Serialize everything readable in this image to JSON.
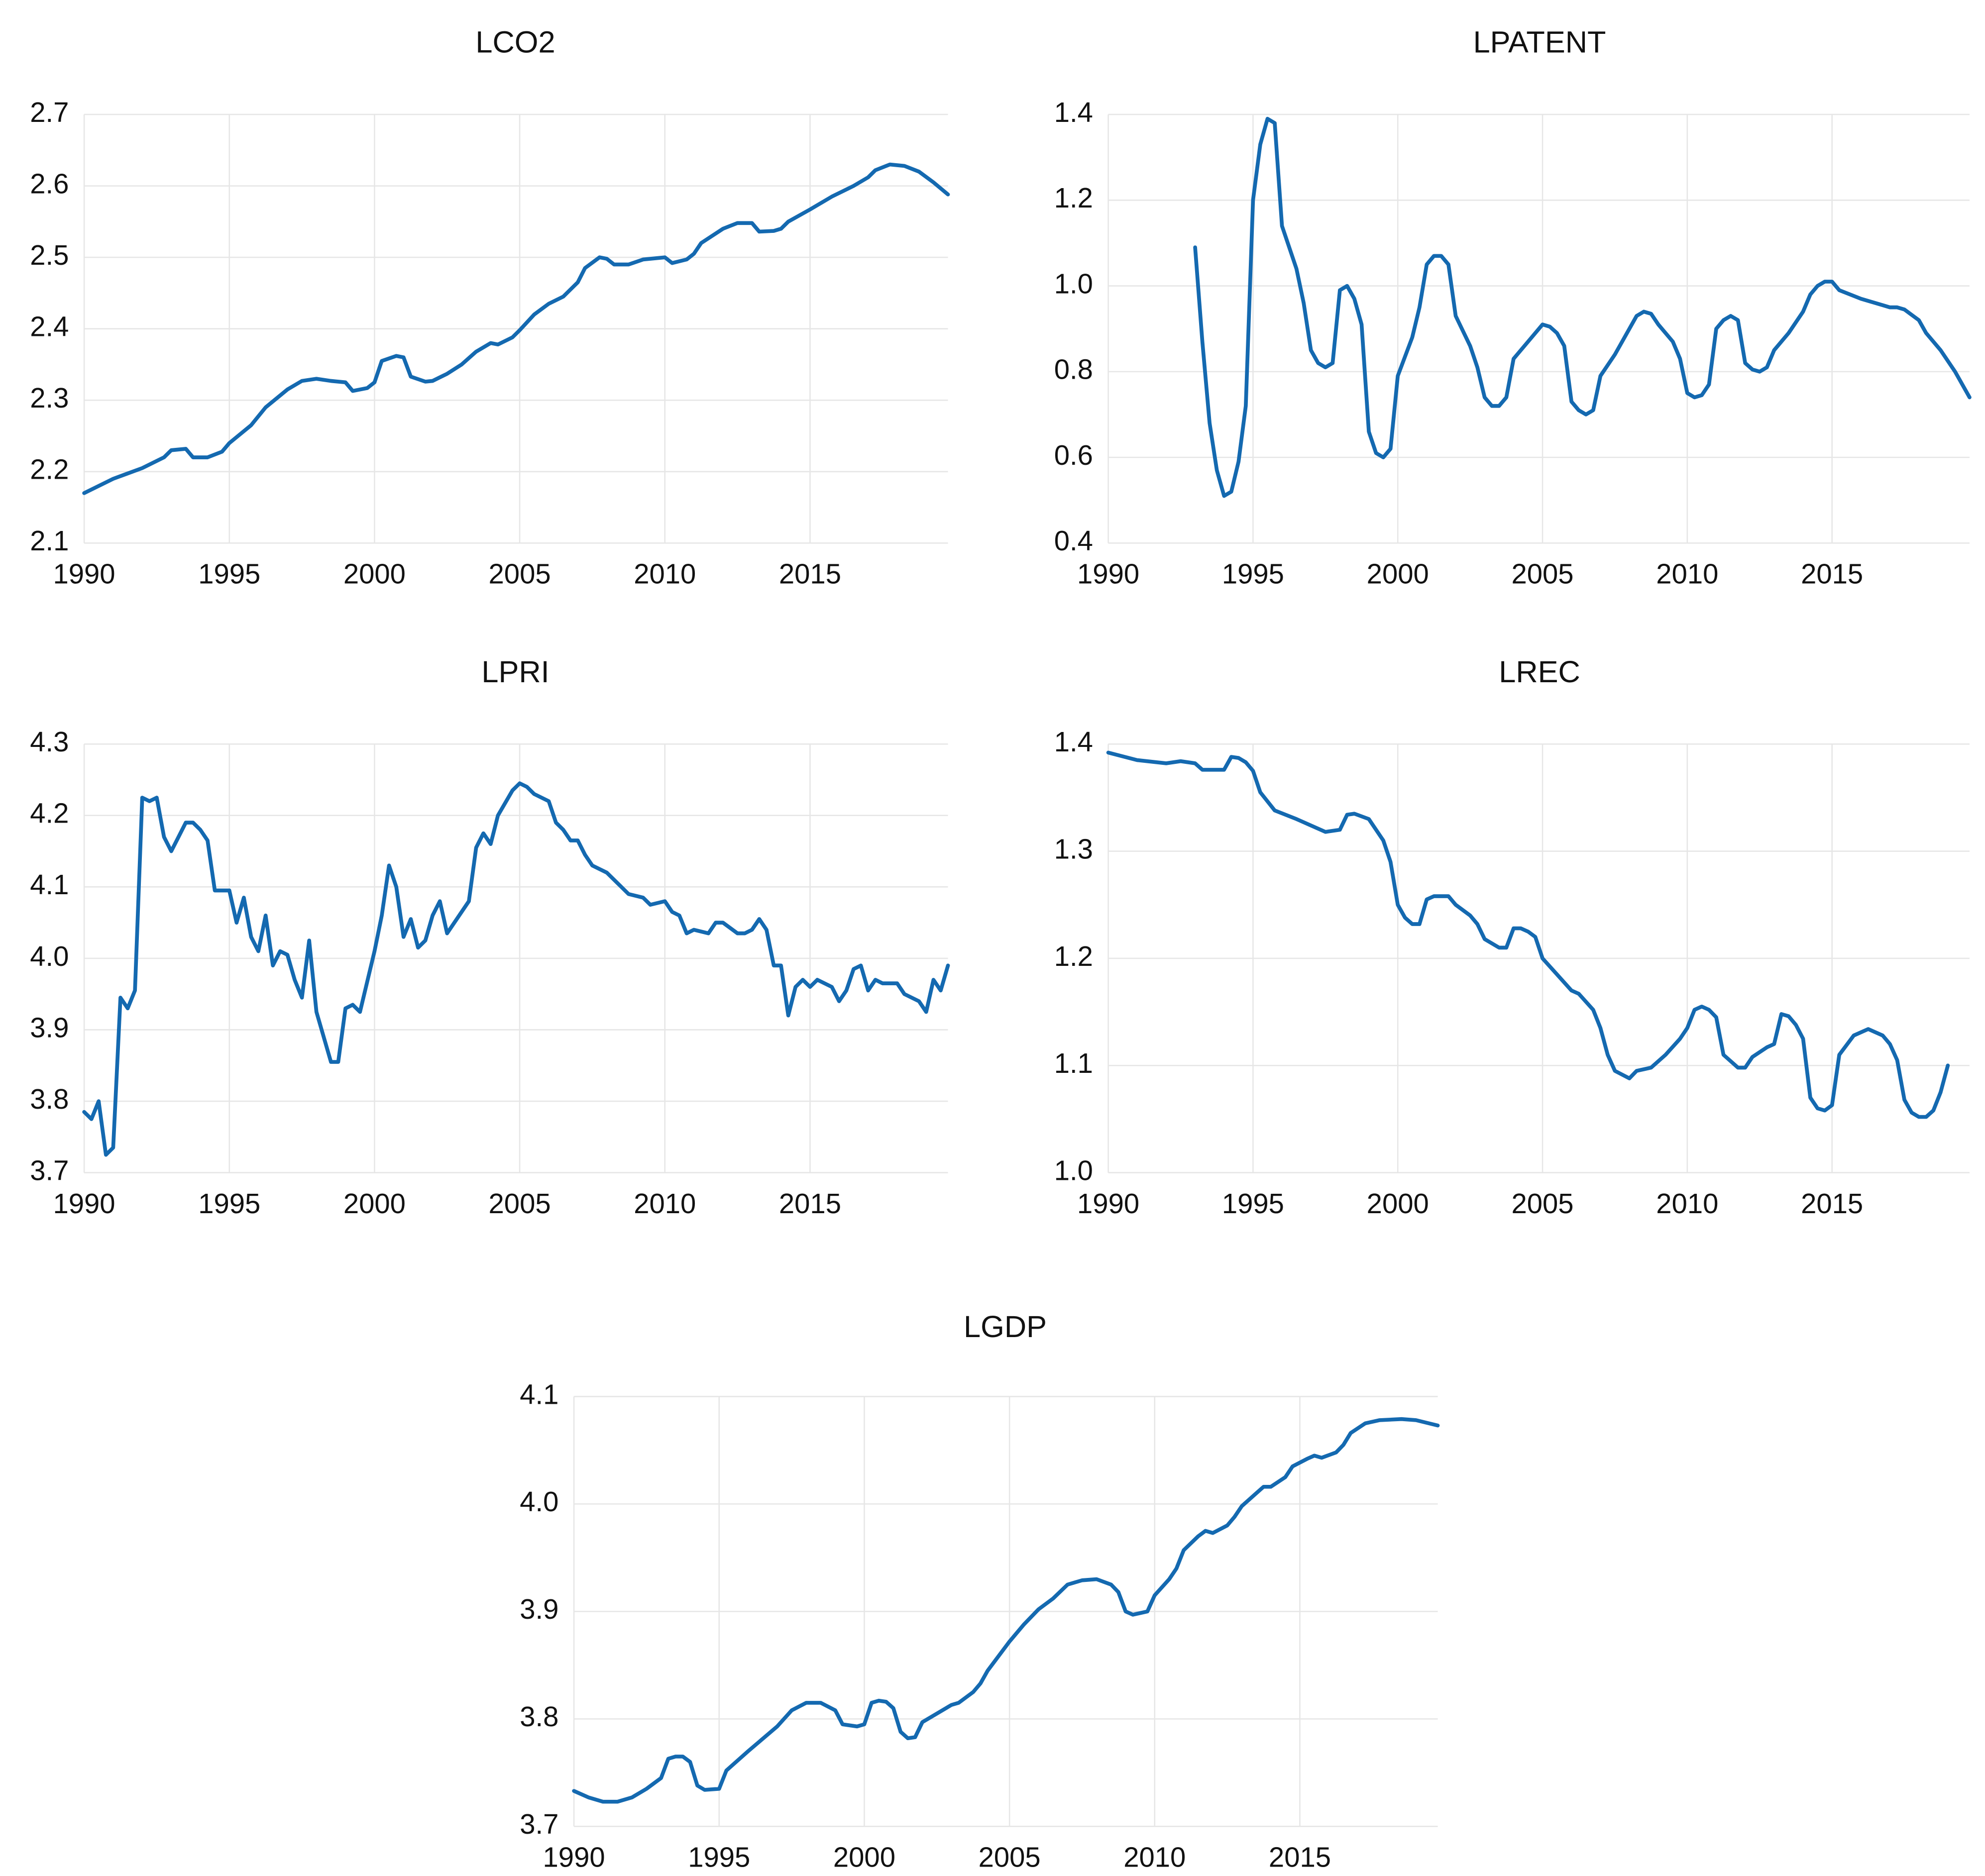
{
  "chart_data": [
    {
      "type": "line",
      "title": "LCO2",
      "color": "#1469b0",
      "grid": true,
      "xlim": [
        1990,
        2019.75
      ],
      "xticks": [
        1990,
        1995,
        2000,
        2005,
        2010,
        2015
      ],
      "ylim": [
        2.1,
        2.7
      ],
      "yticks": [
        2.1,
        2.2,
        2.3,
        2.4,
        2.5,
        2.6,
        2.7
      ],
      "x": [
        1990,
        1991,
        1992,
        1992.75,
        1993,
        1993.5,
        1993.75,
        1994.25,
        1994.75,
        1995,
        1995.75,
        1996.25,
        1997,
        1997.5,
        1998,
        1998.5,
        1999,
        1999.25,
        1999.75,
        2000,
        2000.25,
        2000.75,
        2001,
        2001.25,
        2001.75,
        2002,
        2002.5,
        2003,
        2003.5,
        2004,
        2004.25,
        2004.75,
        2005,
        2005.5,
        2006,
        2006.5,
        2007,
        2007.25,
        2007.75,
        2008,
        2008.25,
        2008.75,
        2009.25,
        2010,
        2010.25,
        2010.75,
        2011,
        2011.25,
        2012,
        2012.5,
        2013,
        2013.25,
        2013.75,
        2014,
        2014.25,
        2015,
        2015.75,
        2016.5,
        2017,
        2017.25,
        2017.75,
        2018.25,
        2018.75,
        2019.25,
        2019.75
      ],
      "values": [
        2.17,
        2.19,
        2.205,
        2.22,
        2.23,
        2.232,
        2.22,
        2.22,
        2.228,
        2.24,
        2.265,
        2.29,
        2.315,
        2.327,
        2.33,
        2.327,
        2.325,
        2.313,
        2.317,
        2.325,
        2.355,
        2.362,
        2.36,
        2.333,
        2.326,
        2.327,
        2.337,
        2.35,
        2.368,
        2.38,
        2.378,
        2.388,
        2.398,
        2.42,
        2.435,
        2.445,
        2.465,
        2.485,
        2.5,
        2.498,
        2.49,
        2.49,
        2.497,
        2.5,
        2.492,
        2.497,
        2.505,
        2.52,
        2.54,
        2.548,
        2.548,
        2.536,
        2.537,
        2.54,
        2.55,
        2.567,
        2.585,
        2.6,
        2.612,
        2.622,
        2.63,
        2.628,
        2.62,
        2.605,
        2.588
      ]
    },
    {
      "type": "line",
      "title": "LPATENT",
      "color": "#1469b0",
      "grid": true,
      "xlim": [
        1990,
        2019.75
      ],
      "xticks": [
        1990,
        1995,
        2000,
        2005,
        2010,
        2015
      ],
      "ylim": [
        0.4,
        1.4
      ],
      "yticks": [
        0.4,
        0.6,
        0.8,
        {
          "value": 1,
          "label": "1.0"
        },
        1.2,
        1.4
      ],
      "x": [
        1993,
        1993.25,
        1993.5,
        1993.75,
        1994,
        1994.25,
        1994.5,
        1994.75,
        1995,
        1995.25,
        1995.5,
        1995.75,
        1996,
        1996.5,
        1996.75,
        1997,
        1997.25,
        1997.5,
        1997.75,
        1998,
        1998.25,
        1998.5,
        1998.75,
        1999,
        1999.25,
        1999.5,
        1999.75,
        2000,
        2000.5,
        2000.75,
        2001,
        2001.25,
        2001.5,
        2001.75,
        2002,
        2002.5,
        2002.75,
        2003,
        2003.25,
        2003.5,
        2003.75,
        2004,
        2004.5,
        2005,
        2005.25,
        2005.5,
        2005.75,
        2006,
        2006.25,
        2006.5,
        2006.75,
        2007,
        2007.5,
        2008,
        2008.25,
        2008.5,
        2008.75,
        2009,
        2009.5,
        2009.75,
        2010,
        2010.25,
        2010.5,
        2010.75,
        2011,
        2011.25,
        2011.5,
        2011.75,
        2012,
        2012.25,
        2012.5,
        2012.75,
        2013,
        2013.5,
        2014,
        2014.25,
        2014.5,
        2014.75,
        2015,
        2015.25,
        2016,
        2016.75,
        2017,
        2017.25,
        2017.5,
        2018,
        2018.25,
        2018.75,
        2019.25,
        2019.75
      ],
      "values": [
        1.09,
        0.87,
        0.68,
        0.57,
        0.51,
        0.52,
        0.59,
        0.72,
        1.2,
        1.33,
        1.39,
        1.38,
        1.14,
        1.04,
        0.96,
        0.85,
        0.82,
        0.81,
        0.82,
        0.99,
        1.0,
        0.97,
        0.91,
        0.66,
        0.61,
        0.6,
        0.62,
        0.79,
        0.88,
        0.95,
        1.05,
        1.07,
        1.07,
        1.05,
        0.93,
        0.86,
        0.81,
        0.74,
        0.72,
        0.72,
        0.74,
        0.83,
        0.87,
        0.91,
        0.905,
        0.89,
        0.86,
        0.73,
        0.71,
        0.7,
        0.71,
        0.79,
        0.84,
        0.9,
        0.93,
        0.94,
        0.935,
        0.91,
        0.87,
        0.83,
        0.75,
        0.74,
        0.745,
        0.77,
        0.9,
        0.92,
        0.93,
        0.92,
        0.82,
        0.805,
        0.8,
        0.81,
        0.85,
        0.89,
        0.94,
        0.98,
        1.0,
        1.01,
        1.01,
        0.99,
        0.97,
        0.955,
        0.95,
        0.95,
        0.945,
        0.92,
        0.89,
        0.85,
        0.8,
        0.74
      ]
    },
    {
      "type": "line",
      "title": "LPRI",
      "color": "#1469b0",
      "grid": true,
      "xlim": [
        1990,
        2019.75
      ],
      "xticks": [
        1990,
        1995,
        2000,
        2005,
        2010,
        2015
      ],
      "ylim": [
        3.7,
        4.3
      ],
      "yticks": [
        3.7,
        3.8,
        3.9,
        {
          "value": 4,
          "label": "4.0"
        },
        4.1,
        4.2,
        4.3
      ],
      "x": [
        1990,
        1990.25,
        1990.5,
        1990.75,
        1991,
        1991.25,
        1991.5,
        1991.75,
        1992,
        1992.25,
        1992.5,
        1992.75,
        1993,
        1993.25,
        1993.5,
        1993.75,
        1994,
        1994.25,
        1994.5,
        1994.75,
        1995,
        1995.25,
        1995.5,
        1995.75,
        1996,
        1996.25,
        1996.5,
        1996.75,
        1997,
        1997.25,
        1997.5,
        1997.75,
        1998,
        1998.5,
        1998.75,
        1999,
        1999.25,
        1999.5,
        2000,
        2000.25,
        2000.5,
        2000.75,
        2001,
        2001.25,
        2001.5,
        2001.75,
        2002,
        2002.25,
        2002.5,
        2003,
        2003.25,
        2003.5,
        2003.75,
        2004,
        2004.25,
        2004.75,
        2005,
        2005.25,
        2005.5,
        2006,
        2006.25,
        2006.5,
        2006.75,
        2007,
        2007.25,
        2007.5,
        2008,
        2008.5,
        2008.75,
        2009.25,
        2009.5,
        2010,
        2010.25,
        2010.5,
        2010.75,
        2011,
        2011.5,
        2011.75,
        2012,
        2012.5,
        2012.75,
        2013,
        2013.25,
        2013.5,
        2013.75,
        2014,
        2014.25,
        2014.5,
        2014.75,
        2015,
        2015.25,
        2015.75,
        2016,
        2016.25,
        2016.5,
        2016.75,
        2017,
        2017.25,
        2017.5,
        2018,
        2018.25,
        2018.75,
        2019,
        2019.25,
        2019.5,
        2019.75
      ],
      "values": [
        3.785,
        3.775,
        3.8,
        3.725,
        3.735,
        3.945,
        3.93,
        3.955,
        4.225,
        4.22,
        4.225,
        4.17,
        4.15,
        4.17,
        4.19,
        4.19,
        4.18,
        4.165,
        4.095,
        4.095,
        4.095,
        4.05,
        4.085,
        4.03,
        4.01,
        4.06,
        3.99,
        4.01,
        4.005,
        3.97,
        3.945,
        4.025,
        3.925,
        3.855,
        3.855,
        3.93,
        3.935,
        3.925,
        4.01,
        4.06,
        4.13,
        4.1,
        4.03,
        4.055,
        4.015,
        4.025,
        4.06,
        4.08,
        4.035,
        4.065,
        4.08,
        4.155,
        4.175,
        4.16,
        4.2,
        4.235,
        4.245,
        4.24,
        4.23,
        4.22,
        4.19,
        4.18,
        4.165,
        4.165,
        4.145,
        4.13,
        4.12,
        4.1,
        4.09,
        4.085,
        4.075,
        4.08,
        4.065,
        4.06,
        4.035,
        4.04,
        4.035,
        4.05,
        4.05,
        4.035,
        4.035,
        4.04,
        4.055,
        4.04,
        3.99,
        3.99,
        3.92,
        3.96,
        3.97,
        3.96,
        3.97,
        3.96,
        3.94,
        3.955,
        3.985,
        3.99,
        3.955,
        3.97,
        3.965,
        3.965,
        3.95,
        3.94,
        3.925,
        3.97,
        3.955,
        3.99
      ]
    },
    {
      "type": "line",
      "title": "LREC",
      "color": "#1469b0",
      "grid": true,
      "xlim": [
        1990,
        2019.75
      ],
      "xticks": [
        1990,
        1995,
        2000,
        2005,
        2010,
        2015
      ],
      "ylim": [
        1.0,
        1.4
      ],
      "yticks": [
        {
          "value": 1,
          "label": "1.0"
        },
        1.1,
        1.2,
        1.3,
        1.4
      ],
      "x": [
        1990,
        1991,
        1992,
        1992.5,
        1993,
        1993.25,
        1994,
        1994.25,
        1994.5,
        1994.75,
        1995,
        1995.25,
        1995.75,
        1996.5,
        1997,
        1997.5,
        1998,
        1998.25,
        1998.5,
        1999,
        1999.25,
        1999.5,
        1999.75,
        2000,
        2000.25,
        2000.5,
        2000.75,
        2001,
        2001.25,
        2001.75,
        2002,
        2002.5,
        2002.75,
        2003,
        2003.5,
        2003.75,
        2004,
        2004.25,
        2004.5,
        2004.75,
        2005,
        2005.5,
        2006,
        2006.25,
        2006.75,
        2007,
        2007.25,
        2007.5,
        2008,
        2008.25,
        2008.75,
        2009.25,
        2009.75,
        2010,
        2010.25,
        2010.5,
        2010.75,
        2011,
        2011.25,
        2011.75,
        2012,
        2012.25,
        2012.75,
        2013,
        2013.25,
        2013.5,
        2013.75,
        2014,
        2014.25,
        2014.5,
        2014.75,
        2015,
        2015.25,
        2015.75,
        2016.25,
        2016.75,
        2017,
        2017.25,
        2017.5,
        2017.75,
        2018,
        2018.25,
        2018.5,
        2018.75,
        2019
      ],
      "values": [
        1.392,
        1.385,
        1.382,
        1.384,
        1.382,
        1.376,
        1.376,
        1.388,
        1.387,
        1.383,
        1.375,
        1.355,
        1.338,
        1.33,
        1.324,
        1.318,
        1.32,
        1.334,
        1.335,
        1.33,
        1.32,
        1.31,
        1.29,
        1.25,
        1.238,
        1.232,
        1.232,
        1.255,
        1.258,
        1.258,
        1.25,
        1.24,
        1.232,
        1.218,
        1.21,
        1.21,
        1.228,
        1.228,
        1.225,
        1.22,
        1.2,
        1.185,
        1.17,
        1.167,
        1.152,
        1.135,
        1.11,
        1.095,
        1.088,
        1.095,
        1.098,
        1.11,
        1.125,
        1.135,
        1.152,
        1.155,
        1.152,
        1.145,
        1.11,
        1.098,
        1.098,
        1.108,
        1.117,
        1.12,
        1.148,
        1.146,
        1.138,
        1.125,
        1.07,
        1.06,
        1.058,
        1.063,
        1.11,
        1.128,
        1.134,
        1.128,
        1.12,
        1.105,
        1.068,
        1.056,
        1.052,
        1.052,
        1.058,
        1.075,
        1.1
      ]
    },
    {
      "type": "line",
      "title": "LGDP",
      "color": "#1469b0",
      "grid": true,
      "xlim": [
        1990,
        2019.75
      ],
      "xticks": [
        1990,
        1995,
        2000,
        2005,
        2010,
        2015
      ],
      "ylim": [
        3.7,
        4.1
      ],
      "yticks": [
        3.7,
        3.8,
        3.9,
        {
          "value": 4,
          "label": "4.0"
        },
        4.1
      ],
      "x": [
        1990,
        1990.5,
        1991,
        1991.5,
        1992,
        1992.5,
        1993,
        1993.25,
        1993.5,
        1993.75,
        1994,
        1994.25,
        1994.5,
        1995,
        1995.25,
        1996,
        1997,
        1997.5,
        1998,
        1998.5,
        1999,
        1999.25,
        1999.75,
        2000,
        2000.25,
        2000.5,
        2000.75,
        2001,
        2001.25,
        2001.5,
        2001.75,
        2002,
        2002.5,
        2003,
        2003.25,
        2003.75,
        2004,
        2004.25,
        2005,
        2005.5,
        2006,
        2006.5,
        2007,
        2007.5,
        2008,
        2008.5,
        2008.75,
        2009,
        2009.25,
        2009.75,
        2010,
        2010.5,
        2010.75,
        2011,
        2011.5,
        2011.75,
        2012,
        2012.5,
        2012.75,
        2013,
        2013.5,
        2013.75,
        2014,
        2014.5,
        2014.75,
        2015.25,
        2015.5,
        2015.75,
        2016.25,
        2016.5,
        2016.75,
        2017.25,
        2017.75,
        2018.5,
        2019,
        2019.75
      ],
      "values": [
        3.733,
        3.727,
        3.723,
        3.723,
        3.727,
        3.735,
        3.745,
        3.763,
        3.765,
        3.765,
        3.76,
        3.738,
        3.734,
        3.735,
        3.752,
        3.77,
        3.793,
        3.808,
        3.815,
        3.815,
        3.808,
        3.795,
        3.793,
        3.795,
        3.815,
        3.817,
        3.816,
        3.81,
        3.788,
        3.782,
        3.783,
        3.797,
        3.805,
        3.813,
        3.815,
        3.825,
        3.833,
        3.845,
        3.872,
        3.888,
        3.902,
        3.912,
        3.925,
        3.929,
        3.93,
        3.925,
        3.918,
        3.9,
        3.897,
        3.9,
        3.915,
        3.93,
        3.94,
        3.957,
        3.97,
        3.975,
        3.973,
        3.98,
        3.988,
        3.998,
        4.01,
        4.016,
        4.016,
        4.025,
        4.035,
        4.042,
        4.045,
        4.043,
        4.048,
        4.055,
        4.066,
        4.075,
        4.078,
        4.079,
        4.078,
        4.073
      ]
    }
  ]
}
